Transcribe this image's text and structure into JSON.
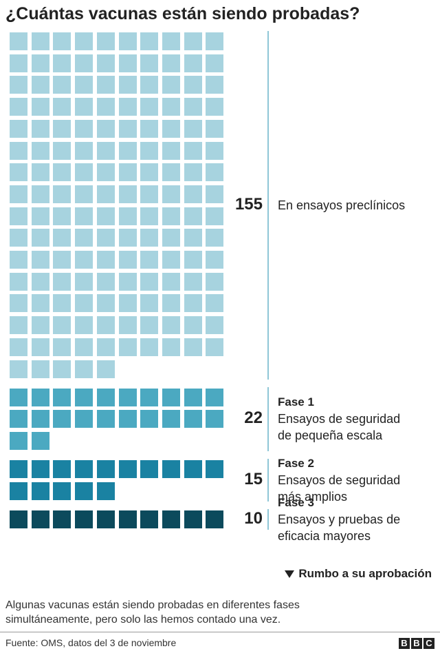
{
  "chart_data": {
    "type": "waffle",
    "title": "¿Cuántas vacunas están siendo probadas?",
    "groups": [
      {
        "value": 155,
        "description": "En ensayos preclínicos",
        "color": "#a7d3df"
      },
      {
        "value": 22,
        "phase": "Fase 1",
        "description": "Ensayos de seguridad de pequeña escala",
        "color": "#4ba9c1"
      },
      {
        "value": 15,
        "phase": "Fase 2",
        "description": "Ensayos de seguridad más amplios",
        "color": "#1a82a2"
      },
      {
        "value": 10,
        "phase": "Fase 3",
        "description": "Ensayos y pruebas de eficacia mayores",
        "color": "#0c4a5c"
      }
    ],
    "columns": 10,
    "annotation": "Rumbo a su aprobación",
    "note": "Algunas vacunas están siendo probadas en diferentes fases simultáneamente, pero solo las hemos contado una vez.",
    "source": "Fuente: OMS, datos del 3 de noviembre",
    "logo": [
      "B",
      "B",
      "C"
    ]
  }
}
